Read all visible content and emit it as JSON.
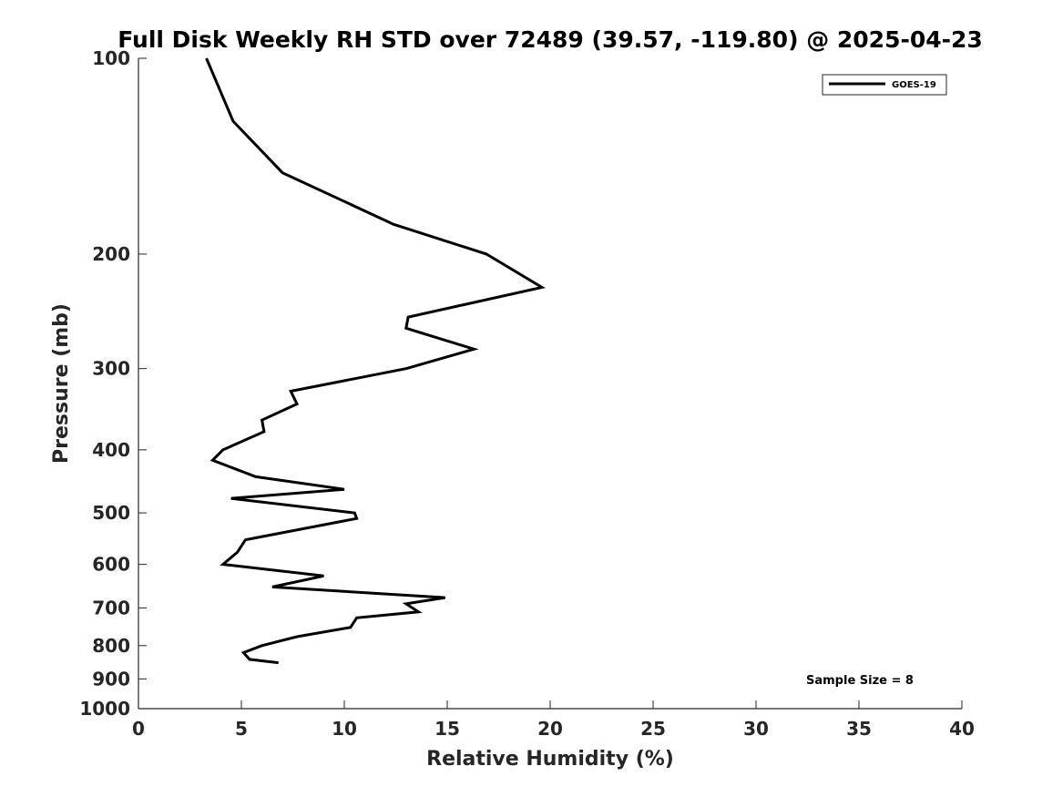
{
  "chart_data": {
    "type": "line",
    "title": "Full Disk Weekly RH STD over 72489 (39.57, -119.80) @ 2025-04-23",
    "xlabel": "Relative Humidity (%)",
    "ylabel": "Pressure (mb)",
    "xlim": [
      0,
      40
    ],
    "ylim": [
      100,
      1000
    ],
    "yscale": "log",
    "y_reversed": true,
    "x_ticks": [
      0,
      5,
      10,
      15,
      20,
      25,
      30,
      35,
      40
    ],
    "y_ticks": [
      100,
      200,
      300,
      400,
      500,
      600,
      700,
      800,
      900,
      1000
    ],
    "grid": false,
    "legend_position": "top-right",
    "series": [
      {
        "name": "GOES-19",
        "color": "#000000",
        "points": [
          {
            "x": 3.3,
            "y": 100
          },
          {
            "x": 4.6,
            "y": 125
          },
          {
            "x": 7.0,
            "y": 150
          },
          {
            "x": 12.4,
            "y": 180
          },
          {
            "x": 16.9,
            "y": 200
          },
          {
            "x": 19.6,
            "y": 225
          },
          {
            "x": 13.1,
            "y": 250
          },
          {
            "x": 13.0,
            "y": 260
          },
          {
            "x": 16.3,
            "y": 280
          },
          {
            "x": 13.0,
            "y": 300
          },
          {
            "x": 7.4,
            "y": 325
          },
          {
            "x": 7.7,
            "y": 340
          },
          {
            "x": 6.0,
            "y": 360
          },
          {
            "x": 6.1,
            "y": 375
          },
          {
            "x": 4.1,
            "y": 400
          },
          {
            "x": 3.6,
            "y": 415
          },
          {
            "x": 5.7,
            "y": 440
          },
          {
            "x": 10.0,
            "y": 460
          },
          {
            "x": 4.5,
            "y": 475
          },
          {
            "x": 10.5,
            "y": 500
          },
          {
            "x": 10.6,
            "y": 510
          },
          {
            "x": 5.2,
            "y": 550
          },
          {
            "x": 4.8,
            "y": 575
          },
          {
            "x": 4.1,
            "y": 600
          },
          {
            "x": 9.0,
            "y": 625
          },
          {
            "x": 6.5,
            "y": 650
          },
          {
            "x": 14.9,
            "y": 675
          },
          {
            "x": 13.0,
            "y": 690
          },
          {
            "x": 13.6,
            "y": 710
          },
          {
            "x": 10.6,
            "y": 725
          },
          {
            "x": 10.3,
            "y": 750
          },
          {
            "x": 7.7,
            "y": 775
          },
          {
            "x": 6.0,
            "y": 800
          },
          {
            "x": 5.1,
            "y": 820
          },
          {
            "x": 5.4,
            "y": 840
          },
          {
            "x": 6.8,
            "y": 850
          }
        ]
      }
    ],
    "legend": [
      {
        "label": "GOES-19"
      }
    ],
    "annotation": "Sample Size = 8"
  }
}
